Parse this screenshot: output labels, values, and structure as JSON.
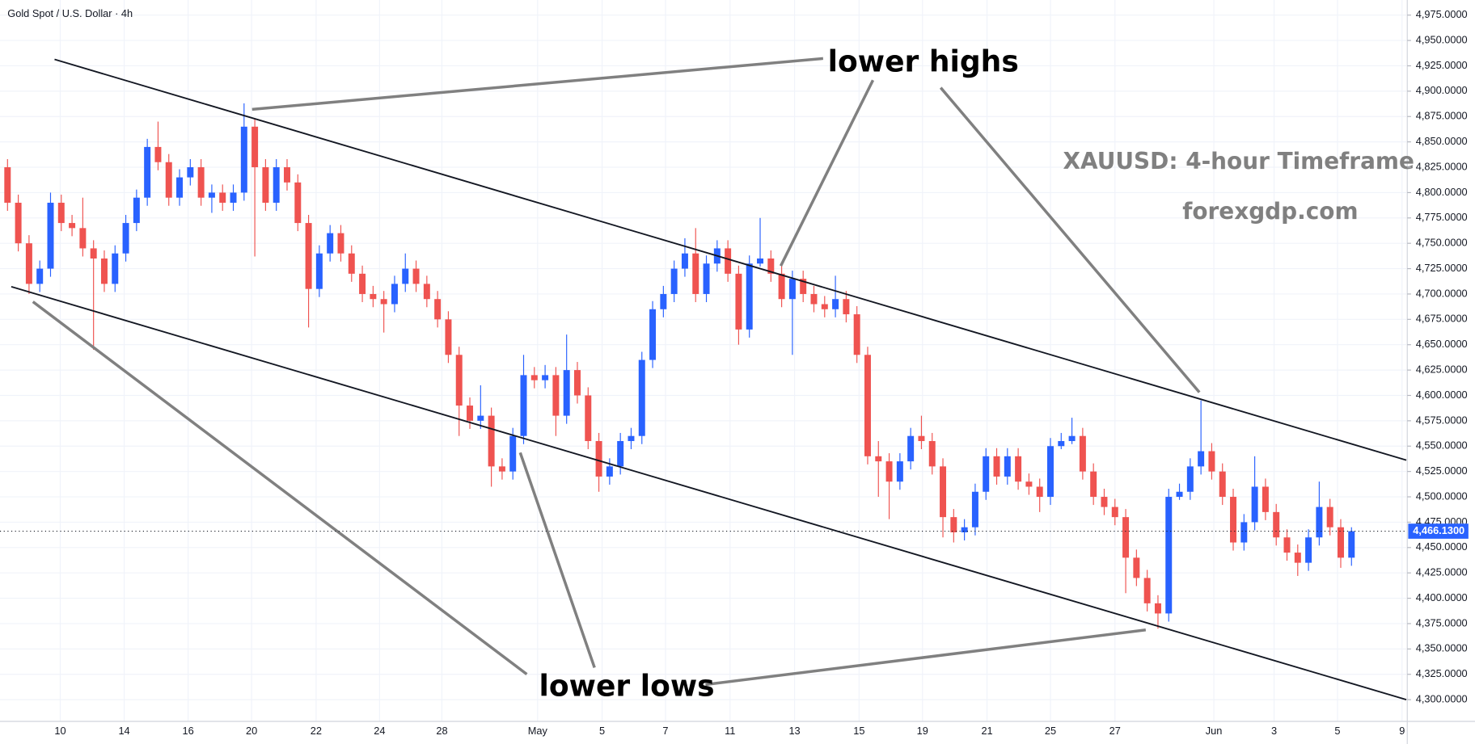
{
  "chart_data": {
    "type": "candlestick",
    "title": "Gold Spot / U.S. Dollar · 4h",
    "annotations": [
      "lower highs",
      "lower lows",
      "XAUUSD: 4-hour Timeframe",
      "forexgdp.com"
    ],
    "up_color": "#2962ff",
    "down_color": "#ef5350",
    "xlim": [
      -0.7,
      130.1
    ],
    "xticks": [
      {
        "value": 4.9,
        "label": "10"
      },
      {
        "value": 10.85,
        "label": "14"
      },
      {
        "value": 16.8,
        "label": "16"
      },
      {
        "value": 22.7,
        "label": "20"
      },
      {
        "value": 28.7,
        "label": "22"
      },
      {
        "value": 34.6,
        "label": "24"
      },
      {
        "value": 40.4,
        "label": "28"
      },
      {
        "value": 49.3,
        "label": "May"
      },
      {
        "value": 55.3,
        "label": "5"
      },
      {
        "value": 61.2,
        "label": "7"
      },
      {
        "value": 67.2,
        "label": "11"
      },
      {
        "value": 73.2,
        "label": "13"
      },
      {
        "value": 79.2,
        "label": "15"
      },
      {
        "value": 85.1,
        "label": "19"
      },
      {
        "value": 91.1,
        "label": "21"
      },
      {
        "value": 97.0,
        "label": "25"
      },
      {
        "value": 103.0,
        "label": "27"
      },
      {
        "value": 112.2,
        "label": "Jun"
      },
      {
        "value": 117.8,
        "label": "3"
      },
      {
        "value": 123.7,
        "label": "5"
      },
      {
        "value": 129.7,
        "label": "9"
      }
    ],
    "ylim": [
      4278.6,
      4989.9
    ],
    "yticks": [
      {
        "value": 4300,
        "label": "4,300.0000"
      },
      {
        "value": 4325,
        "label": "4,325.0000"
      },
      {
        "value": 4350,
        "label": "4,350.0000"
      },
      {
        "value": 4375,
        "label": "4,375.0000"
      },
      {
        "value": 4400,
        "label": "4,400.0000"
      },
      {
        "value": 4425,
        "label": "4,425.0000"
      },
      {
        "value": 4450,
        "label": "4,450.0000"
      },
      {
        "value": 4475,
        "label": "4,475.0000"
      },
      {
        "value": 4500,
        "label": "4,500.0000"
      },
      {
        "value": 4525,
        "label": "4,525.0000"
      },
      {
        "value": 4550,
        "label": "4,550.0000"
      },
      {
        "value": 4575,
        "label": "4,575.0000"
      },
      {
        "value": 4600,
        "label": "4,600.0000"
      },
      {
        "value": 4625,
        "label": "4,625.0000"
      },
      {
        "value": 4650,
        "label": "4,650.0000"
      },
      {
        "value": 4675,
        "label": "4,675.0000"
      },
      {
        "value": 4700,
        "label": "4,700.0000"
      },
      {
        "value": 4725,
        "label": "4,725.0000"
      },
      {
        "value": 4750,
        "label": "4,750.0000"
      },
      {
        "value": 4775,
        "label": "4,775.0000"
      },
      {
        "value": 4800,
        "label": "4,800.0000"
      },
      {
        "value": 4825,
        "label": "4,825.0000"
      },
      {
        "value": 4850,
        "label": "4,850.0000"
      },
      {
        "value": 4875,
        "label": "4,875.0000"
      },
      {
        "value": 4900,
        "label": "4,900.0000"
      },
      {
        "value": 4925,
        "label": "4,925.0000"
      },
      {
        "value": 4950,
        "label": "4,950.0000"
      },
      {
        "value": 4975,
        "label": "4,975.0000"
      }
    ],
    "last_price": {
      "value": 4466.13,
      "label": "4,466.1300"
    },
    "open": [
      4825,
      4790,
      4750,
      4710,
      4725,
      4790,
      4770,
      4765,
      4745,
      4735,
      4710,
      4740,
      4770,
      4795,
      4845,
      4830,
      4795,
      4815,
      4825,
      4795,
      4800,
      4790,
      4800,
      4865,
      4825,
      4790,
      4825,
      4810,
      4770,
      4705,
      4740,
      4760,
      4740,
      4720,
      4700,
      4695,
      4690,
      4710,
      4725,
      4710,
      4695,
      4675,
      4640,
      4590,
      4575,
      4580,
      4530,
      4525,
      4560,
      4620,
      4615,
      4620,
      4580,
      4625,
      4600,
      4555,
      4520,
      4530,
      4555,
      4560,
      4635,
      4685,
      4700,
      4725,
      4740,
      4700,
      4730,
      4745,
      4720,
      4665,
      4730,
      4735,
      4720,
      4695,
      4715,
      4700,
      4690,
      4685,
      4695,
      4680,
      4640,
      4540,
      4535,
      4515,
      4535,
      4560,
      4555,
      4530,
      4480,
      4465,
      4470,
      4505,
      4540,
      4520,
      4540,
      4515,
      4510,
      4500,
      4550,
      4555,
      4560,
      4525,
      4500,
      4490,
      4480,
      4440,
      4420,
      4395,
      4385,
      4500,
      4505,
      4530,
      4545,
      4525,
      4500,
      4455,
      4475,
      4510,
      4485,
      4460,
      4445,
      4435,
      4460,
      4490,
      4470,
      4440
    ],
    "high": [
      4833,
      4798,
      4758,
      4733,
      4800,
      4798,
      4778,
      4795,
      4753,
      4743,
      4748,
      4778,
      4803,
      4853,
      4870,
      4838,
      4823,
      4833,
      4833,
      4808,
      4808,
      4808,
      4888,
      4873,
      4833,
      4833,
      4833,
      4818,
      4778,
      4748,
      4768,
      4768,
      4748,
      4728,
      4708,
      4703,
      4718,
      4740,
      4733,
      4718,
      4703,
      4683,
      4648,
      4598,
      4610,
      4588,
      4538,
      4568,
      4640,
      4628,
      4630,
      4628,
      4660,
      4633,
      4608,
      4563,
      4538,
      4563,
      4568,
      4643,
      4693,
      4708,
      4733,
      4755,
      4765,
      4738,
      4753,
      4753,
      4728,
      4738,
      4775,
      4743,
      4728,
      4723,
      4723,
      4708,
      4698,
      4718,
      4703,
      4688,
      4648,
      4555,
      4543,
      4543,
      4568,
      4580,
      4563,
      4538,
      4488,
      4478,
      4513,
      4548,
      4548,
      4548,
      4548,
      4523,
      4518,
      4558,
      4563,
      4578,
      4568,
      4533,
      4508,
      4498,
      4488,
      4448,
      4428,
      4403,
      4508,
      4513,
      4538,
      4595,
      4553,
      4533,
      4508,
      4483,
      4540,
      4518,
      4493,
      4468,
      4453,
      4468,
      4515,
      4498,
      4478,
      4470
    ],
    "low": [
      4782,
      4742,
      4700,
      4702,
      4717,
      4762,
      4757,
      4737,
      4645,
      4702,
      4702,
      4732,
      4762,
      4787,
      4822,
      4787,
      4787,
      4807,
      4787,
      4780,
      4782,
      4782,
      4792,
      4737,
      4782,
      4782,
      4802,
      4762,
      4667,
      4697,
      4732,
      4732,
      4712,
      4692,
      4687,
      4662,
      4682,
      4702,
      4702,
      4687,
      4667,
      4632,
      4560,
      4567,
      4567,
      4510,
      4517,
      4517,
      4552,
      4607,
      4607,
      4560,
      4572,
      4592,
      4547,
      4505,
      4512,
      4522,
      4547,
      4552,
      4627,
      4677,
      4692,
      4717,
      4692,
      4692,
      4722,
      4712,
      4650,
      4657,
      4727,
      4712,
      4687,
      4640,
      4692,
      4682,
      4677,
      4677,
      4672,
      4632,
      4532,
      4500,
      4478,
      4507,
      4527,
      4547,
      4522,
      4460,
      4455,
      4457,
      4462,
      4497,
      4512,
      4512,
      4507,
      4502,
      4485,
      4492,
      4547,
      4552,
      4517,
      4492,
      4482,
      4472,
      4405,
      4412,
      4387,
      4370,
      4377,
      4497,
      4497,
      4522,
      4517,
      4492,
      4447,
      4447,
      4467,
      4477,
      4452,
      4437,
      4422,
      4427,
      4452,
      4462,
      4430,
      4432
    ],
    "close": [
      4790,
      4750,
      4710,
      4725,
      4790,
      4770,
      4765,
      4745,
      4735,
      4710,
      4740,
      4770,
      4795,
      4845,
      4830,
      4795,
      4815,
      4825,
      4795,
      4800,
      4790,
      4800,
      4865,
      4825,
      4790,
      4825,
      4810,
      4770,
      4705,
      4740,
      4760,
      4740,
      4720,
      4700,
      4695,
      4690,
      4710,
      4725,
      4710,
      4695,
      4675,
      4640,
      4590,
      4575,
      4580,
      4530,
      4525,
      4560,
      4620,
      4615,
      4620,
      4580,
      4625,
      4600,
      4555,
      4520,
      4530,
      4555,
      4560,
      4635,
      4685,
      4700,
      4725,
      4740,
      4700,
      4730,
      4745,
      4720,
      4665,
      4730,
      4735,
      4720,
      4695,
      4715,
      4700,
      4690,
      4685,
      4695,
      4680,
      4640,
      4540,
      4535,
      4515,
      4535,
      4560,
      4555,
      4530,
      4480,
      4465,
      4470,
      4505,
      4540,
      4520,
      4540,
      4515,
      4510,
      4500,
      4550,
      4555,
      4560,
      4525,
      4500,
      4490,
      4480,
      4440,
      4420,
      4395,
      4385,
      4500,
      4505,
      4530,
      4545,
      4525,
      4500,
      4455,
      4475,
      4510,
      4485,
      4460,
      4445,
      4435,
      4460,
      4490,
      4470,
      4440,
      4466.13
    ]
  }
}
